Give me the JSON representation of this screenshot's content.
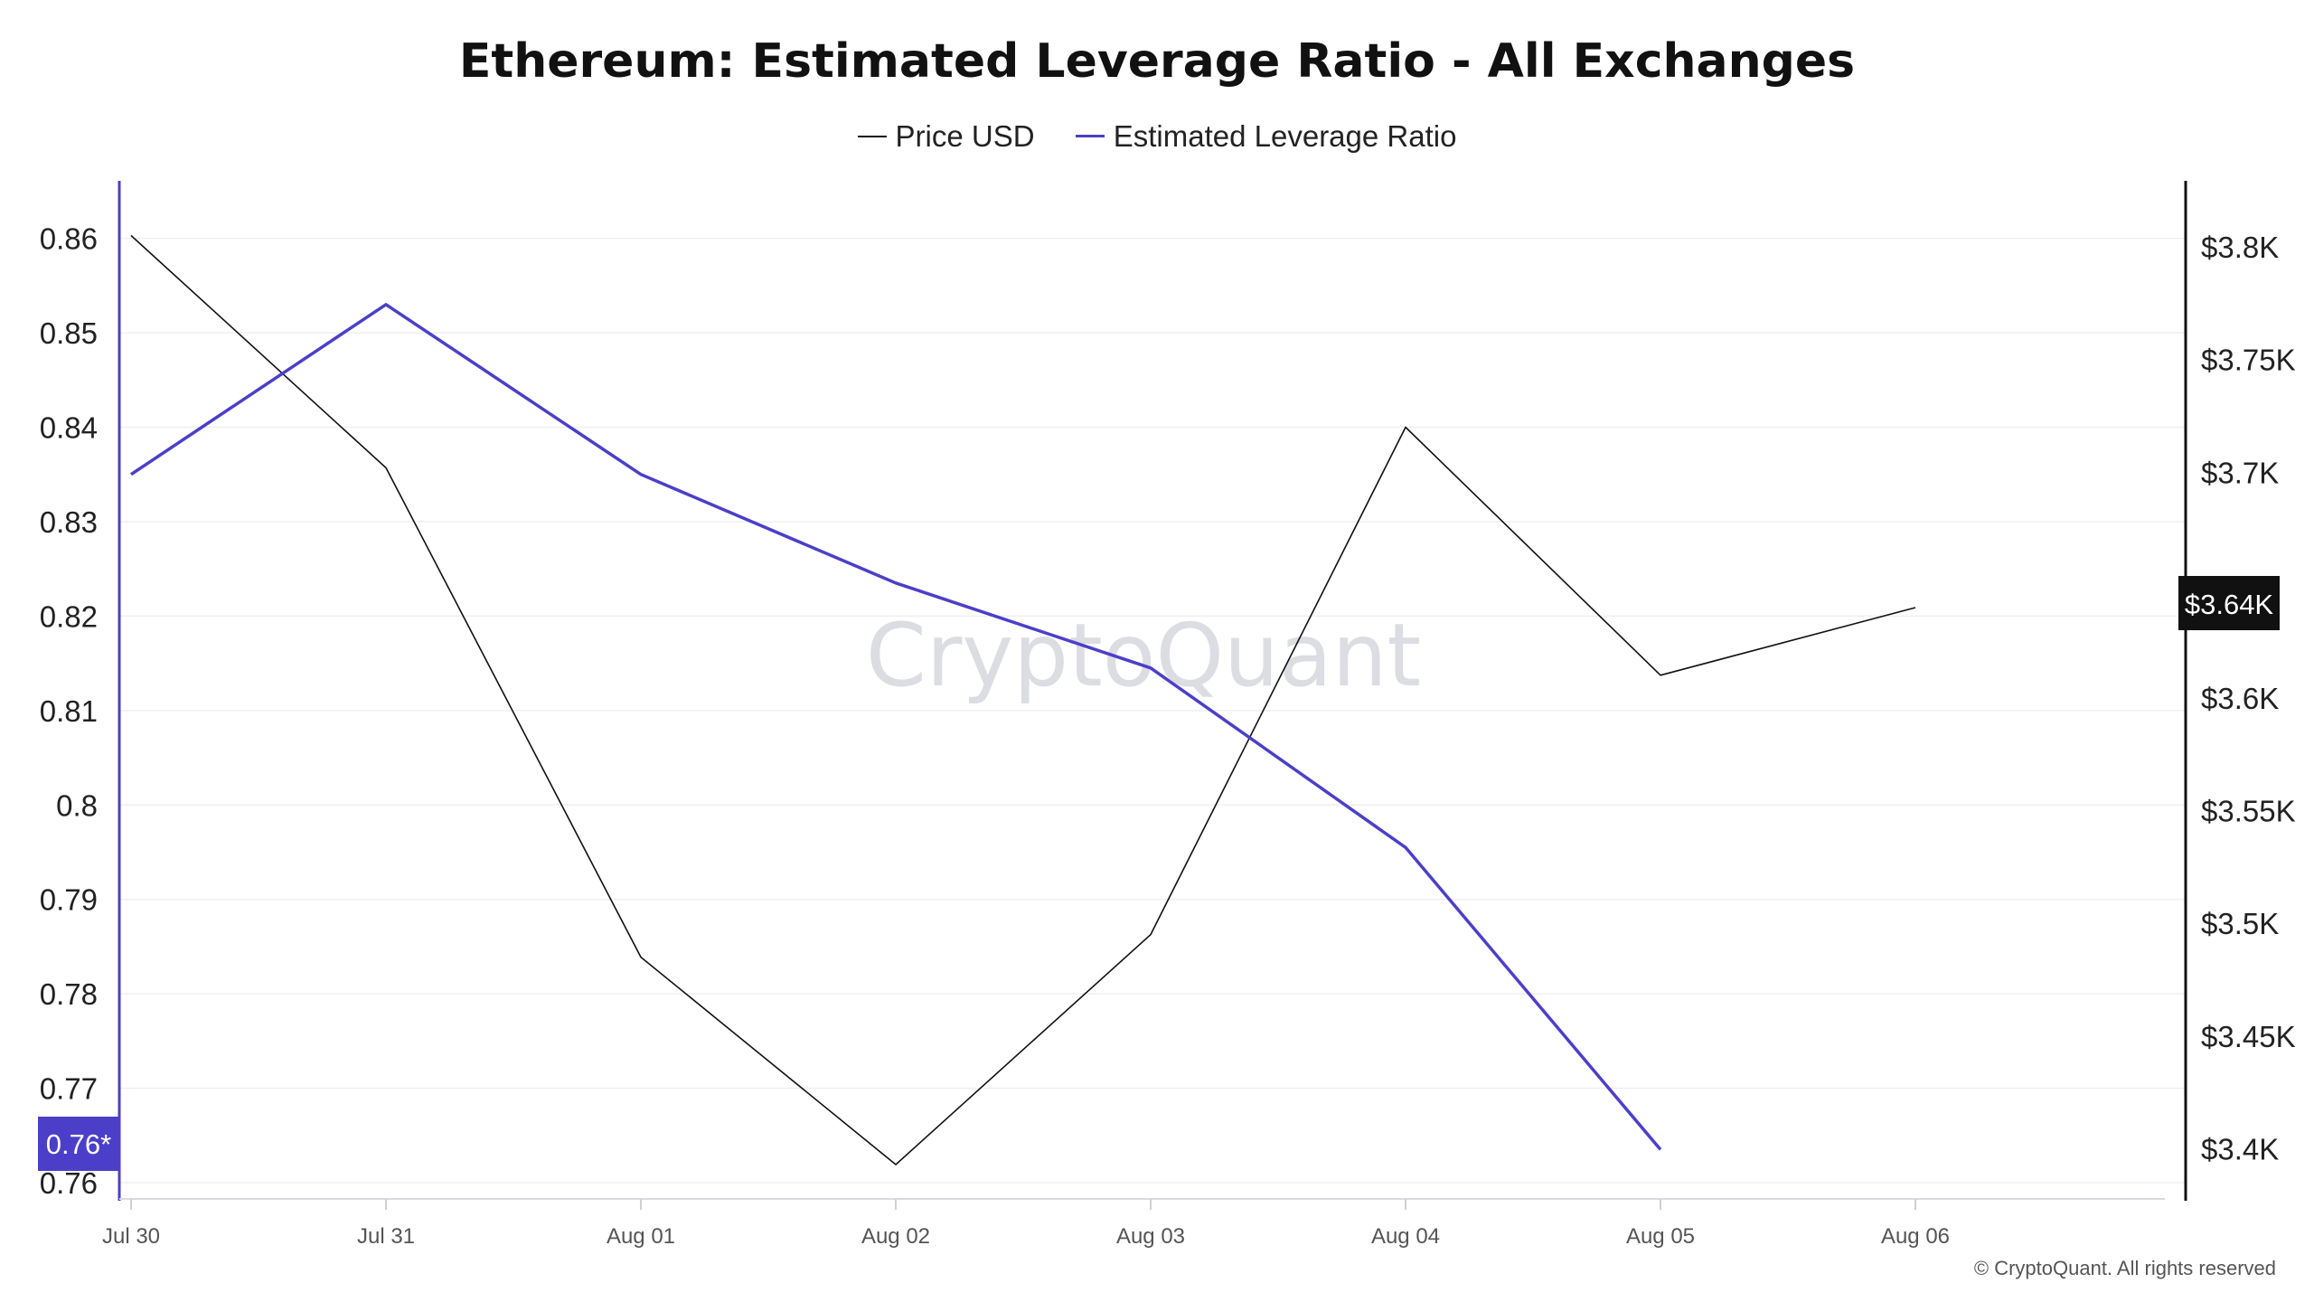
{
  "chart_data": {
    "type": "line",
    "title": "Ethereum: Estimated Leverage Ratio - All Exchanges",
    "categories": [
      "Jul 30",
      "Jul 31",
      "Aug 01",
      "Aug 02",
      "Aug 03",
      "Aug 04",
      "Aug 05",
      "Aug 06"
    ],
    "series": [
      {
        "name": "Price USD",
        "axis": "right",
        "color": "#111111",
        "values": [
          3805,
          3702,
          3485,
          3393,
          3495,
          3720,
          3610,
          3640
        ]
      },
      {
        "name": "Estimated Leverage Ratio",
        "axis": "left",
        "color": "#4b3fc9",
        "values": [
          0.835,
          0.853,
          0.835,
          0.8235,
          0.8145,
          0.7955,
          0.7635,
          null
        ]
      }
    ],
    "left_axis": {
      "ticks": [
        0.76,
        0.77,
        0.78,
        0.79,
        0.8,
        0.81,
        0.82,
        0.83,
        0.84,
        0.85,
        0.86
      ],
      "tick_labels": [
        "0.76",
        "0.77",
        "0.78",
        "0.79",
        "0.8",
        "0.81",
        "0.82",
        "0.83",
        "0.84",
        "0.85",
        "0.86"
      ],
      "range": [
        0.76,
        0.8615
      ],
      "current_value_label": "0.76*",
      "color": "#4b3fc9"
    },
    "right_axis": {
      "ticks": [
        3400,
        3450,
        3500,
        3550,
        3600,
        3650,
        3700,
        3750,
        3800
      ],
      "tick_labels": [
        "$3.4K",
        "$3.45K",
        "$3.5K",
        "$3.55K",
        "$3.6K",
        "$3.65K",
        "$3.7K",
        "$3.75K",
        "$3.8K"
      ],
      "range": [
        3385,
        3810
      ],
      "current_value_label": "$3.64K",
      "current_value": 3642
    },
    "grid": true,
    "legend_position": "top-center",
    "watermark": "CryptoQuant"
  },
  "copyright": "© CryptoQuant. All rights reserved"
}
